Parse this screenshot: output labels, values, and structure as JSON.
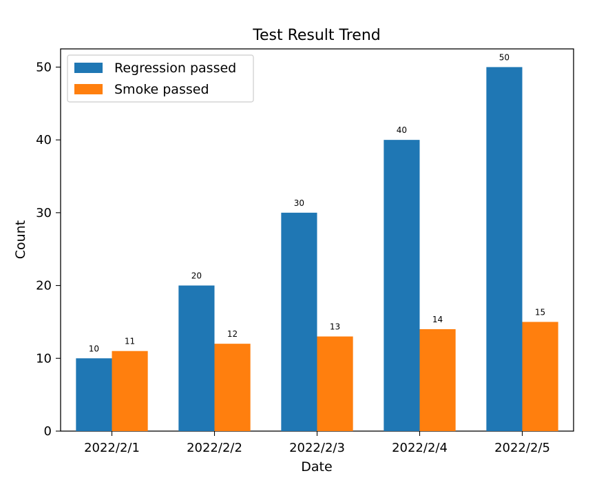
{
  "chart_data": {
    "type": "bar",
    "title": "Test Result Trend",
    "xlabel": "Date",
    "ylabel": "Count",
    "categories": [
      "2022/2/1",
      "2022/2/2",
      "2022/2/3",
      "2022/2/4",
      "2022/2/5"
    ],
    "series": [
      {
        "name": "Regression passed",
        "values": [
          10,
          20,
          30,
          40,
          50
        ],
        "color": "#1f77b4"
      },
      {
        "name": "Smoke passed",
        "values": [
          11,
          12,
          13,
          14,
          15
        ],
        "color": "#ff7f0e"
      }
    ],
    "ylim": [
      0,
      52.5
    ],
    "yticks": [
      0,
      10,
      20,
      30,
      40,
      50
    ],
    "grid": false,
    "legend": "top-left",
    "data_labels": true
  }
}
